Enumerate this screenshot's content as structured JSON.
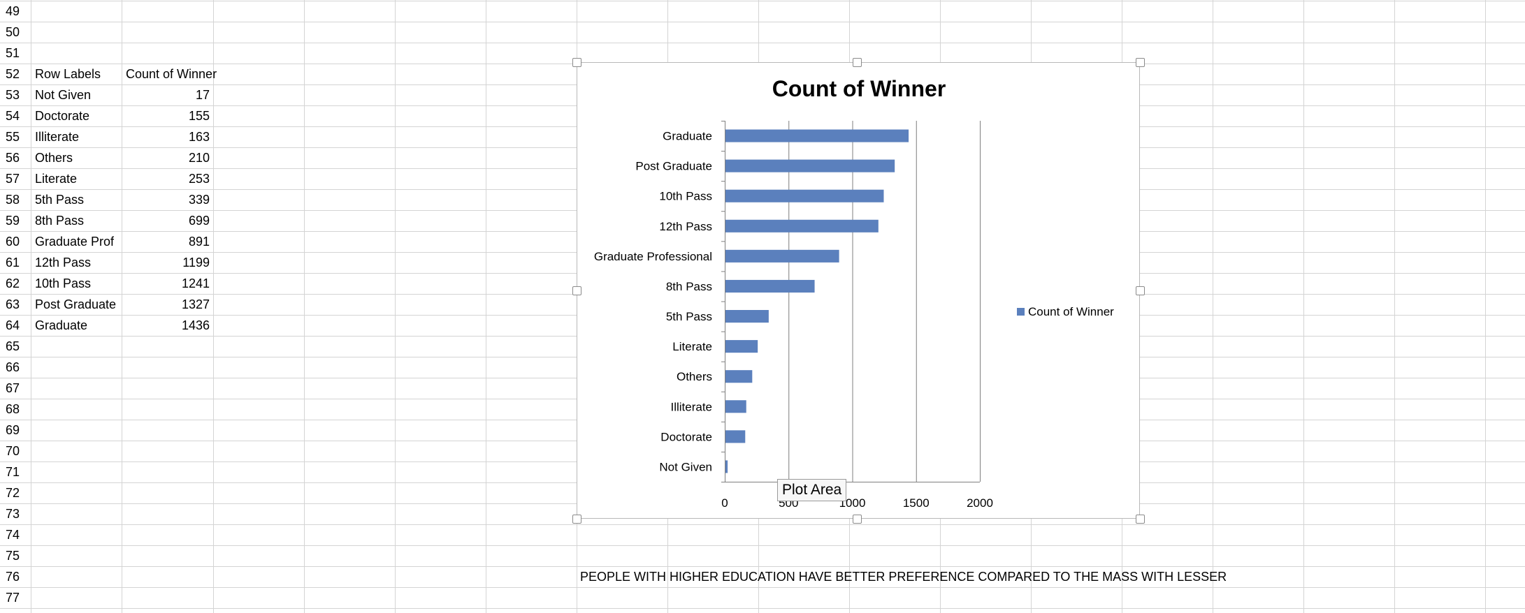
{
  "rows": [
    "49",
    "50",
    "51",
    "52",
    "53",
    "54",
    "55",
    "56",
    "57",
    "58",
    "59",
    "60",
    "61",
    "62",
    "63",
    "64",
    "65",
    "66",
    "67",
    "68",
    "69",
    "70",
    "71",
    "72",
    "73",
    "74",
    "75",
    "76",
    "77"
  ],
  "pivot": {
    "header_label": "Row Labels",
    "header_value": "Count of Winner",
    "items": [
      {
        "label": "Not Given",
        "value": "17"
      },
      {
        "label": "Doctorate",
        "value": "155"
      },
      {
        "label": "Illiterate",
        "value": "163"
      },
      {
        "label": "Others",
        "value": "210"
      },
      {
        "label": "Literate",
        "value": "253"
      },
      {
        "label": "5th Pass",
        "value": "339"
      },
      {
        "label": "8th Pass",
        "value": "699"
      },
      {
        "label": "Graduate Prof",
        "value": "891"
      },
      {
        "label": "12th Pass",
        "value": "1199"
      },
      {
        "label": "10th Pass",
        "value": "1241"
      },
      {
        "label": "Post Graduate",
        "value": "1327"
      },
      {
        "label": "Graduate",
        "value": "1436"
      }
    ]
  },
  "chart_data": {
    "type": "bar",
    "orientation": "horizontal",
    "title": "Count of Winner",
    "categories": [
      "Graduate",
      "Post Graduate",
      "10th Pass",
      "12th Pass",
      "Graduate Professional",
      "8th Pass",
      "5th Pass",
      "Literate",
      "Others",
      "Illiterate",
      "Doctorate",
      "Not Given"
    ],
    "series": [
      {
        "name": "Count of Winner",
        "values": [
          1436,
          1327,
          1241,
          1199,
          891,
          699,
          339,
          253,
          210,
          163,
          155,
          17
        ],
        "color": "#5b80bd"
      }
    ],
    "xlim": [
      0,
      2000
    ],
    "x_ticks": [
      "0",
      "500",
      "1000",
      "1500",
      "2000"
    ],
    "legend": "right",
    "grid": true
  },
  "tooltip": "Plot Area",
  "note": "PEOPLE WITH HIGHER EDUCATION HAVE BETTER PREFERENCE COMPARED TO THE MASS WITH LESSER",
  "colors": {
    "gridline": "#d4d4d4",
    "bar": "#5b80bd",
    "axis": "#7f7f7f"
  }
}
